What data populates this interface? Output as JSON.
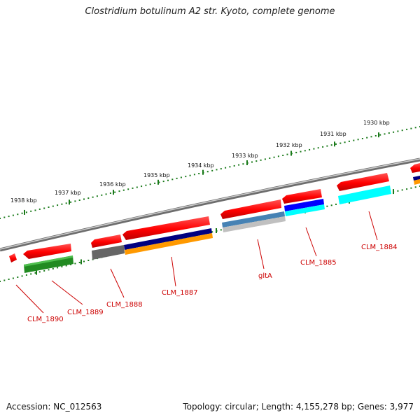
{
  "header": {
    "title": "Clostridium botulinum A2 str. Kyoto, complete genome"
  },
  "footer": {
    "accession": "Accession: NC_012563",
    "topology": "Topology: circular; Length: 4,155,278 bp; Genes: 3,977"
  },
  "scale": {
    "unit": "kbp",
    "ticks": [
      "1938 kbp",
      "1937 kbp",
      "1936 kbp",
      "1935 kbp",
      "1934 kbp",
      "1933 kbp",
      "1932 kbp",
      "1931 kbp",
      "1930 kbp"
    ]
  },
  "gene_labels": [
    "CLM_1890",
    "CLM_1889",
    "CLM_1888",
    "CLM_1887",
    "gltA",
    "CLM_1885",
    "CLM_1884"
  ],
  "colors": {
    "gene": "#ff0000",
    "backbone": "#888888",
    "tick": "#1a7a1a",
    "label": "#cc0000",
    "track_green": "#228b22",
    "track_gray": "#666666",
    "track_navy": "#000080",
    "track_orange": "#ff9900",
    "track_steelblue": "#4682b4",
    "track_blue": "#0000ff",
    "track_cyan": "#00ffff",
    "track_lightgray": "#c0c0c0"
  }
}
